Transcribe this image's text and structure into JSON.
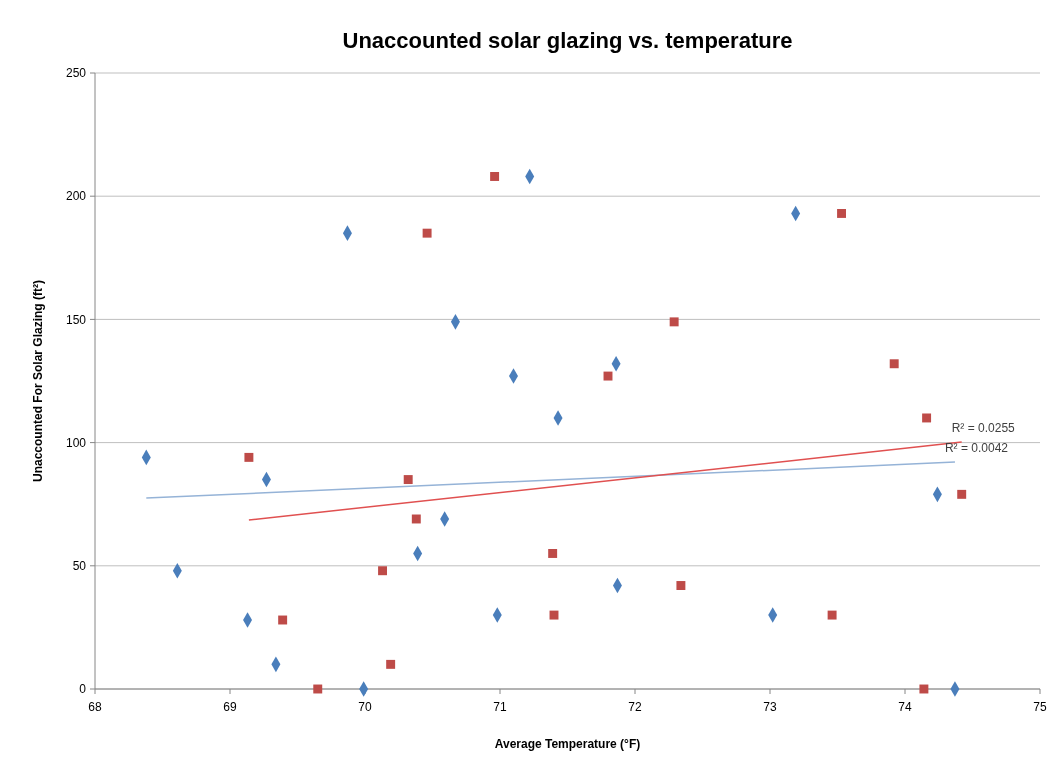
{
  "chart_data": {
    "type": "scatter",
    "title": "Unaccounted solar glazing vs. temperature",
    "xlabel": "Average Temperature (°F)",
    "ylabel": "Unaccounted For Solar Glazing (ft²)",
    "xlim": [
      68,
      75
    ],
    "xticks": [
      68,
      69,
      70,
      71,
      72,
      73,
      74,
      75
    ],
    "ylim": [
      0,
      250
    ],
    "yticks": [
      0,
      50,
      100,
      150,
      200,
      250
    ],
    "grid": "y",
    "series": [
      {
        "color": "#4a7ebb",
        "marker": "diamond",
        "x": [
          68.38,
          68.61,
          69.13,
          69.27,
          69.34,
          69.87,
          69.99,
          70.39,
          70.59,
          70.67,
          70.98,
          71.1,
          71.22,
          71.43,
          71.86,
          71.87,
          73.02,
          73.19,
          74.24,
          74.37
        ],
        "values": [
          94,
          48,
          28,
          85,
          10,
          185,
          0,
          55,
          69,
          149,
          30,
          127,
          208,
          110,
          132,
          42,
          30,
          193,
          79,
          0
        ]
      },
      {
        "color": "#be4b48",
        "marker": "square",
        "x": [
          69.14,
          69.39,
          69.65,
          70.13,
          70.19,
          70.32,
          70.38,
          70.46,
          70.96,
          71.39,
          71.4,
          71.8,
          72.29,
          72.34,
          73.46,
          73.53,
          73.92,
          74.16,
          74.14,
          74.42
        ],
        "values": [
          94,
          28,
          0,
          48,
          10,
          85,
          69,
          185,
          208,
          55,
          30,
          127,
          149,
          42,
          30,
          193,
          132,
          110,
          0,
          79
        ]
      },
      {
        "type": "line",
        "color": "#95b3d7",
        "marker": "none",
        "line_style": "solid",
        "x": [
          68.38,
          74.37
        ],
        "values": [
          77.5,
          92.1
        ]
      },
      {
        "type": "line",
        "color": "#e05050",
        "marker": "none",
        "line_style": "solid",
        "x": [
          69.14,
          74.42
        ],
        "values": [
          68.6,
          100.2
        ]
      }
    ],
    "annotations": [
      {
        "text": "R² = 0.0255",
        "x": 74.42,
        "y": 100.2
      },
      {
        "text": "R² = 0.0042",
        "x": 74.37,
        "y": 92.1
      }
    ]
  }
}
